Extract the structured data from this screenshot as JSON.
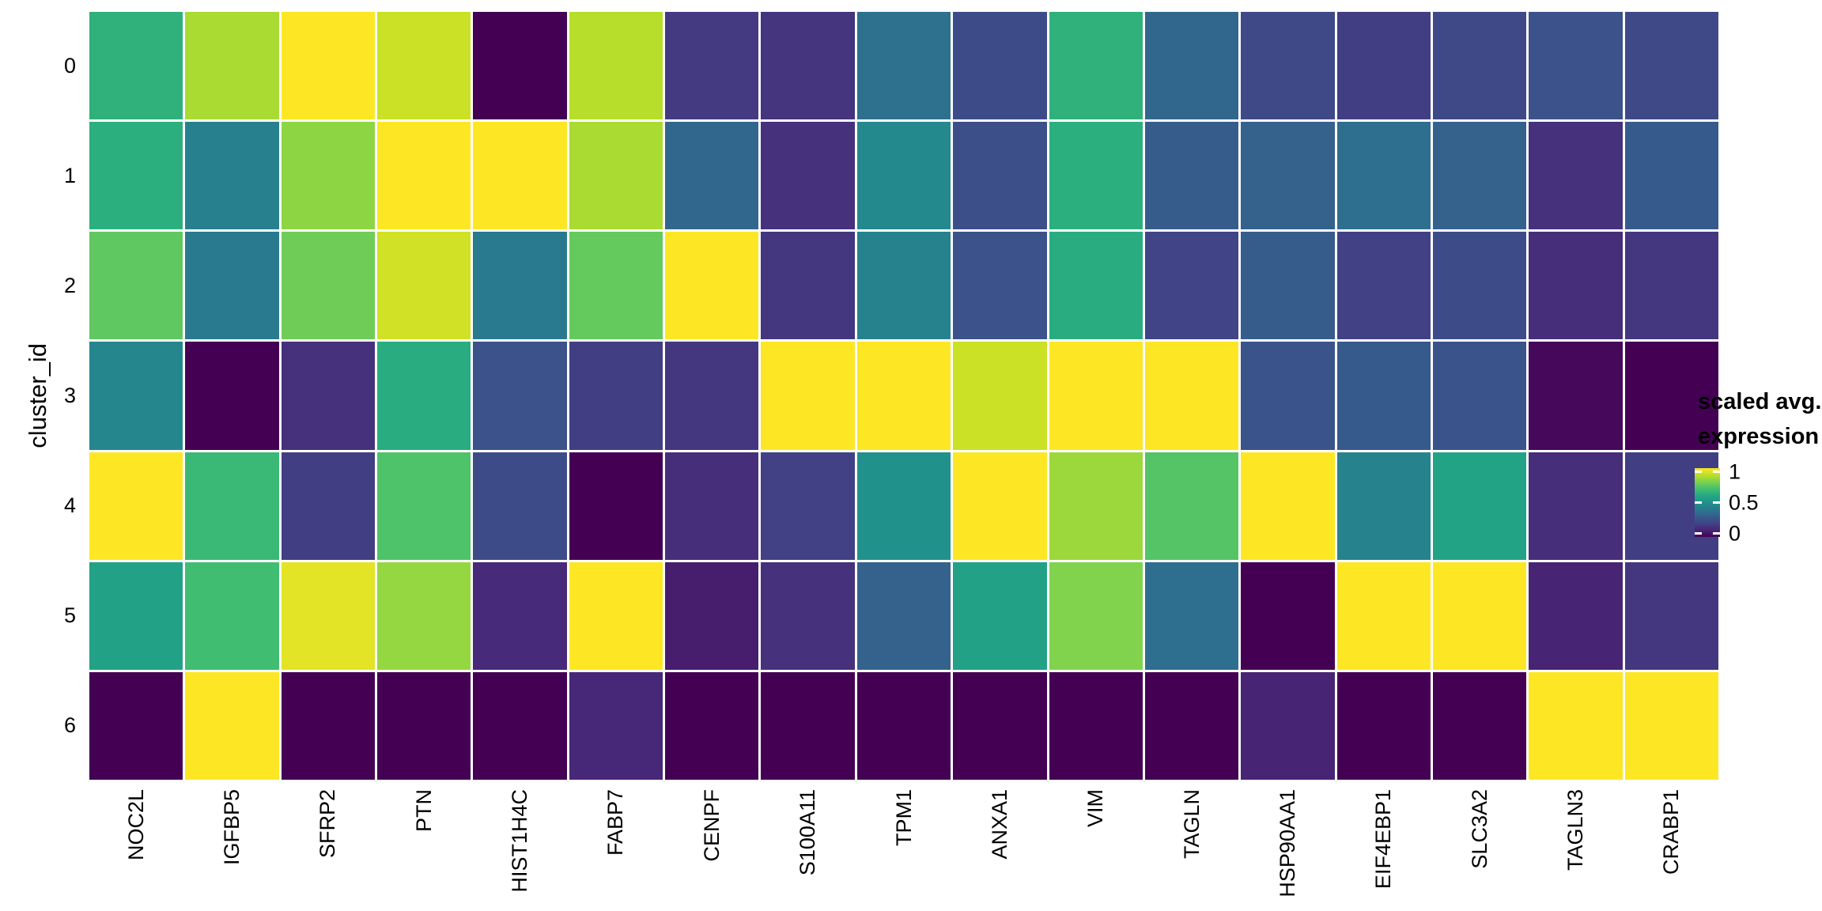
{
  "page": {
    "background": "#ffffff",
    "text_color": "#000000",
    "grid_line_color": "#ffffff"
  },
  "chart_data": {
    "type": "heatmap",
    "title": "",
    "xlabel": "",
    "ylabel": "cluster_id",
    "colormap": "viridis",
    "value_range": [
      0,
      1
    ],
    "x_categories": [
      "NOC2L",
      "IGFBP5",
      "SFRP2",
      "PTN",
      "HIST1H4C",
      "FABP7",
      "CENPF",
      "S100A11",
      "TPM1",
      "ANXA1",
      "VIM",
      "TAGLN",
      "HSP90AA1",
      "EIF4EBP1",
      "SLC3A2",
      "TAGLN3",
      "CRABP1"
    ],
    "y_categories": [
      "0",
      "1",
      "2",
      "3",
      "4",
      "5",
      "6"
    ],
    "values": [
      [
        0.64,
        0.87,
        1.0,
        0.92,
        0.0,
        0.89,
        0.17,
        0.15,
        0.37,
        0.23,
        0.64,
        0.33,
        0.22,
        0.18,
        0.22,
        0.25,
        0.22
      ],
      [
        0.63,
        0.43,
        0.83,
        1.0,
        1.0,
        0.87,
        0.33,
        0.14,
        0.47,
        0.24,
        0.63,
        0.29,
        0.31,
        0.36,
        0.31,
        0.14,
        0.28
      ],
      [
        0.75,
        0.41,
        0.78,
        0.93,
        0.41,
        0.76,
        1.0,
        0.16,
        0.44,
        0.25,
        0.62,
        0.2,
        0.29,
        0.19,
        0.23,
        0.13,
        0.16
      ],
      [
        0.46,
        0.0,
        0.14,
        0.62,
        0.25,
        0.18,
        0.16,
        1.0,
        1.0,
        0.92,
        1.0,
        1.0,
        0.26,
        0.28,
        0.26,
        0.02,
        0.0
      ],
      [
        1.0,
        0.67,
        0.18,
        0.72,
        0.23,
        0.0,
        0.13,
        0.19,
        0.5,
        1.0,
        0.85,
        0.73,
        1.0,
        0.44,
        0.58,
        0.13,
        0.18
      ],
      [
        0.57,
        0.69,
        0.96,
        0.84,
        0.12,
        1.0,
        0.08,
        0.14,
        0.31,
        0.57,
        0.81,
        0.36,
        0.0,
        1.0,
        1.0,
        0.1,
        0.16
      ],
      [
        0.0,
        1.0,
        0.0,
        0.0,
        0.0,
        0.11,
        0.0,
        0.0,
        0.0,
        0.0,
        0.0,
        0.0,
        0.1,
        0.0,
        0.0,
        1.0,
        1.0
      ]
    ],
    "legend": {
      "position": "right",
      "title_line1": "scaled avg.",
      "title_line2": "expression",
      "ticks": [
        {
          "label": "1",
          "value": 1.0
        },
        {
          "label": "0.5",
          "value": 0.5
        },
        {
          "label": "0",
          "value": 0.0
        }
      ]
    }
  }
}
